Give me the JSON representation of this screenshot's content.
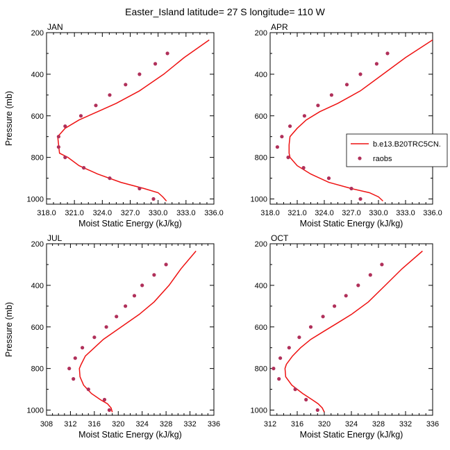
{
  "figure": {
    "title": "Easter_Island  latitude= 27 S longitude= 110 W"
  },
  "colors": {
    "model_line": "#ee1111",
    "obs_marker": "#b0305a",
    "axis": "#000000"
  },
  "legend": {
    "entries": [
      {
        "label": "b.e13.B20TRC5CN.",
        "kind": "line"
      },
      {
        "label": "raobs",
        "kind": "marker"
      }
    ]
  },
  "chart_data": [
    {
      "type": "line",
      "panel_title": "JAN",
      "xlabel": "Moist Static Energy (kJ/kg)",
      "ylabel": "Pressure (mb)",
      "xlim": [
        318,
        336
      ],
      "ylim": [
        1025,
        200
      ],
      "xticks": [
        "318.0",
        "321.0",
        "324.0",
        "327.0",
        "330.0",
        "333.0",
        "336.0"
      ],
      "yticks": [
        "200",
        "400",
        "600",
        "800",
        "1000"
      ],
      "series": [
        {
          "name": "b.e13.B20TRC5CN.",
          "kind": "line",
          "x": [
            330.9,
            330.5,
            330.0,
            328.5,
            326.0,
            323.5,
            321.5,
            320.3,
            319.4,
            319.3,
            319.2,
            320.0,
            321.5,
            323.5,
            325.5,
            328.0,
            330.6,
            332.8,
            335.5
          ],
          "y": [
            1010,
            990,
            970,
            950,
            920,
            880,
            840,
            800,
            780,
            740,
            700,
            660,
            620,
            580,
            540,
            480,
            400,
            320,
            235
          ]
        },
        {
          "name": "raobs",
          "kind": "scatter",
          "x": [
            329.5,
            328.0,
            324.8,
            322.0,
            320.0,
            319.3,
            319.3,
            320.0,
            321.7,
            323.3,
            324.8,
            326.5,
            328.0,
            329.7,
            331.0
          ],
          "y": [
            1000,
            950,
            900,
            850,
            800,
            750,
            700,
            650,
            600,
            550,
            500,
            450,
            400,
            350,
            300
          ]
        }
      ]
    },
    {
      "type": "line",
      "panel_title": "APR",
      "xlabel": "Moist Static Energy (kJ/kg)",
      "ylabel": "",
      "xlim": [
        318,
        336
      ],
      "ylim": [
        1025,
        200
      ],
      "xticks": [
        "318.0",
        "321.0",
        "324.0",
        "327.0",
        "330.0",
        "333.0",
        "336.0"
      ],
      "yticks": [
        "200",
        "400",
        "600",
        "800",
        "1000"
      ],
      "series": [
        {
          "name": "b.e13.B20TRC5CN.",
          "kind": "line",
          "x": [
            330.5,
            330.0,
            329.0,
            327.0,
            324.5,
            322.5,
            321.0,
            320.2,
            320.1,
            320.1,
            320.2,
            321.0,
            322.0,
            323.5,
            325.5,
            328.0,
            330.5,
            333.0,
            336.0
          ],
          "y": [
            1010,
            990,
            970,
            950,
            920,
            880,
            840,
            800,
            780,
            740,
            700,
            660,
            620,
            580,
            540,
            480,
            400,
            320,
            235
          ]
        },
        {
          "name": "raobs",
          "kind": "scatter",
          "x": [
            328.0,
            327.0,
            324.5,
            321.7,
            320.0,
            318.8,
            319.3,
            320.2,
            321.8,
            323.3,
            324.8,
            326.5,
            328.0,
            329.8,
            331.0
          ],
          "y": [
            1000,
            950,
            900,
            850,
            800,
            750,
            700,
            650,
            600,
            550,
            500,
            450,
            400,
            350,
            300
          ]
        }
      ]
    },
    {
      "type": "line",
      "panel_title": "JUL",
      "xlabel": "Moist Static Energy (kJ/kg)",
      "ylabel": "Pressure (mb)",
      "xlim": [
        308,
        336
      ],
      "ylim": [
        1025,
        200
      ],
      "xticks": [
        "308",
        "312",
        "316",
        "320",
        "324",
        "328",
        "332",
        "336"
      ],
      "yticks": [
        "200",
        "400",
        "600",
        "800",
        "1000"
      ],
      "series": [
        {
          "name": "b.e13.B20TRC5CN.",
          "kind": "line",
          "x": [
            319.0,
            318.8,
            318.2,
            317.0,
            315.5,
            314.2,
            313.6,
            313.5,
            313.8,
            314.5,
            316.0,
            317.5,
            319.5,
            321.5,
            323.5,
            326.0,
            328.5,
            330.5,
            333.0
          ],
          "y": [
            1010,
            990,
            970,
            950,
            920,
            880,
            840,
            800,
            780,
            740,
            700,
            660,
            620,
            580,
            540,
            480,
            400,
            320,
            235
          ]
        },
        {
          "name": "raobs",
          "kind": "scatter",
          "x": [
            318.5,
            317.7,
            315.0,
            312.5,
            311.8,
            312.8,
            314.0,
            316.0,
            318.0,
            319.7,
            321.2,
            322.7,
            324.0,
            326.0,
            328.0
          ],
          "y": [
            1000,
            950,
            900,
            850,
            800,
            750,
            700,
            650,
            600,
            550,
            500,
            450,
            400,
            350,
            300
          ]
        }
      ]
    },
    {
      "type": "line",
      "panel_title": "OCT",
      "xlabel": "Moist Static Energy (kJ/kg)",
      "ylabel": "",
      "xlim": [
        312,
        336
      ],
      "ylim": [
        1025,
        200
      ],
      "xticks": [
        "312",
        "316",
        "320",
        "324",
        "328",
        "332",
        "336"
      ],
      "yticks": [
        "200",
        "400",
        "600",
        "800",
        "1000"
      ],
      "series": [
        {
          "name": "b.e13.B20TRC5CN.",
          "kind": "line",
          "x": [
            320.0,
            319.7,
            319.1,
            318.2,
            316.8,
            315.2,
            314.3,
            314.2,
            314.4,
            315.3,
            316.5,
            318.0,
            320.0,
            322.0,
            324.0,
            326.5,
            329.0,
            331.5,
            334.5
          ],
          "y": [
            1010,
            990,
            970,
            950,
            920,
            880,
            840,
            800,
            780,
            740,
            700,
            660,
            620,
            580,
            540,
            480,
            400,
            320,
            235
          ]
        },
        {
          "name": "raobs",
          "kind": "scatter",
          "x": [
            319.0,
            317.3,
            315.7,
            313.3,
            312.5,
            313.5,
            314.8,
            316.3,
            318.0,
            319.8,
            321.5,
            323.2,
            325.0,
            326.8,
            328.5
          ],
          "y": [
            1000,
            950,
            900,
            850,
            800,
            750,
            700,
            650,
            600,
            550,
            500,
            450,
            400,
            350,
            300
          ]
        }
      ]
    }
  ]
}
